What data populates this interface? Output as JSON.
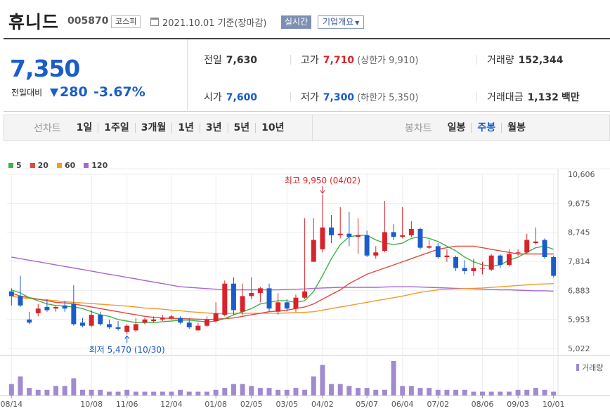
{
  "header": {
    "name": "휴니드",
    "code": "005870",
    "market": "코스피",
    "date": "2021.10.01 기준(장마감)",
    "realtime_label": "실시간",
    "company_label": "기업개요"
  },
  "quote": {
    "price": "7,350",
    "change_label": "전일대비",
    "change": "280",
    "change_pct": "-3.67%",
    "prev_close_label": "전일",
    "prev_close": "7,630",
    "high_label": "고가",
    "high": "7,710",
    "upper_limit": "(상한가 9,910)",
    "volume_label": "거래량",
    "volume": "152,344",
    "open_label": "시가",
    "open": "7,600",
    "low_label": "저가",
    "low": "7,300",
    "lower_limit": "(하한가 5,350)",
    "amount_label": "거래대금",
    "amount": "1,132",
    "amount_unit": "백만"
  },
  "tabs": {
    "line_chart_label": "선차트",
    "line_periods": [
      "1일",
      "1주일",
      "3개월",
      "1년",
      "3년",
      "5년",
      "10년"
    ],
    "candle_label": "봉차트",
    "candle_periods": [
      "일봉",
      "주봉",
      "월봉"
    ],
    "active_candle": "주봉"
  },
  "colors": {
    "up": "#d8232a",
    "down": "#1a5dc9",
    "ma5": "#3bb34a",
    "ma20": "#e8453c",
    "ma60": "#f29a2e",
    "ma120": "#a566d6",
    "volume": "#a18ad0"
  },
  "chart_data": {
    "type": "candlestick",
    "legend": [
      {
        "name": "5"
      },
      {
        "name": "20"
      },
      {
        "name": "60"
      },
      {
        "name": "120"
      }
    ],
    "ylim": [
      5022,
      10606
    ],
    "y_ticks": [
      "10,606",
      "9,675",
      "8,745",
      "7,814",
      "6,883",
      "5,953",
      "5,022"
    ],
    "x_ticks": [
      "08/14",
      "10/08",
      "11/06",
      "12/04",
      "01/08",
      "02/05",
      "03/05",
      "04/02",
      "05/07",
      "06/04",
      "07/02",
      "08/06",
      "09/03",
      "10/01"
    ],
    "x_tick_index": [
      0,
      9,
      13,
      18,
      23,
      27,
      31,
      35,
      40,
      44,
      48,
      53,
      57,
      61
    ],
    "max_annotation": "최고 9,950 (04/02)",
    "min_annotation": "최저 5,470 (10/30)",
    "volume_label": "거래량",
    "candles": [
      {
        "o": 6850,
        "c": 6700,
        "h": 6950,
        "l": 6400
      },
      {
        "o": 6700,
        "c": 6400,
        "h": 7350,
        "l": 6350
      },
      {
        "o": 5950,
        "c": 5850,
        "h": 6200,
        "l": 5800
      },
      {
        "o": 6150,
        "c": 6300,
        "h": 6450,
        "l": 6050
      },
      {
        "o": 6350,
        "c": 6250,
        "h": 6600,
        "l": 6200
      },
      {
        "o": 6300,
        "c": 6350,
        "h": 6400,
        "l": 6200
      },
      {
        "o": 6400,
        "c": 6300,
        "h": 6550,
        "l": 6200
      },
      {
        "o": 6450,
        "c": 5800,
        "h": 7050,
        "l": 5750
      },
      {
        "o": 5850,
        "c": 5750,
        "h": 6000,
        "l": 5700
      },
      {
        "o": 5750,
        "c": 6100,
        "h": 6250,
        "l": 5700
      },
      {
        "o": 6100,
        "c": 5800,
        "h": 6200,
        "l": 5750
      },
      {
        "o": 5800,
        "c": 5700,
        "h": 5950,
        "l": 5650
      },
      {
        "o": 5700,
        "c": 5650,
        "h": 5900,
        "l": 5600
      },
      {
        "o": 5550,
        "c": 5750,
        "h": 5800,
        "l": 5470
      },
      {
        "o": 5600,
        "c": 5800,
        "h": 6000,
        "l": 5550
      },
      {
        "o": 5850,
        "c": 5950,
        "h": 6000,
        "l": 5800
      },
      {
        "o": 5900,
        "c": 5950,
        "h": 6050,
        "l": 5850
      },
      {
        "o": 5950,
        "c": 6000,
        "h": 6100,
        "l": 5900
      },
      {
        "o": 6000,
        "c": 6050,
        "h": 6100,
        "l": 5950
      },
      {
        "o": 6000,
        "c": 5850,
        "h": 6050,
        "l": 5800
      },
      {
        "o": 5850,
        "c": 5700,
        "h": 6000,
        "l": 5650
      },
      {
        "o": 5600,
        "c": 5750,
        "h": 5850,
        "l": 5600
      },
      {
        "o": 5750,
        "c": 5950,
        "h": 6050,
        "l": 5700
      },
      {
        "o": 5900,
        "c": 6150,
        "h": 6500,
        "l": 5850
      },
      {
        "o": 6100,
        "c": 7100,
        "h": 7200,
        "l": 6050
      },
      {
        "o": 7100,
        "c": 6250,
        "h": 7300,
        "l": 6100
      },
      {
        "o": 6200,
        "c": 6700,
        "h": 7100,
        "l": 6100
      },
      {
        "o": 6700,
        "c": 6800,
        "h": 7300,
        "l": 6600
      },
      {
        "o": 6800,
        "c": 6950,
        "h": 7000,
        "l": 6500
      },
      {
        "o": 6950,
        "c": 6300,
        "h": 7100,
        "l": 6200
      },
      {
        "o": 6200,
        "c": 6500,
        "h": 6800,
        "l": 6100
      },
      {
        "o": 6500,
        "c": 6300,
        "h": 6600,
        "l": 6200
      },
      {
        "o": 6300,
        "c": 6650,
        "h": 6750,
        "l": 6200
      },
      {
        "o": 6650,
        "c": 6850,
        "h": 9200,
        "l": 6600
      },
      {
        "o": 7800,
        "c": 8500,
        "h": 9200,
        "l": 7800
      },
      {
        "o": 8200,
        "c": 8900,
        "h": 9950,
        "l": 8100
      },
      {
        "o": 8900,
        "c": 8650,
        "h": 9300,
        "l": 8400
      },
      {
        "o": 8650,
        "c": 8700,
        "h": 9550,
        "l": 8550
      },
      {
        "o": 8700,
        "c": 8600,
        "h": 9400,
        "l": 8300
      },
      {
        "o": 8600,
        "c": 8650,
        "h": 9200,
        "l": 8050
      },
      {
        "o": 8650,
        "c": 8000,
        "h": 8800,
        "l": 7950
      },
      {
        "o": 8000,
        "c": 8100,
        "h": 8300,
        "l": 7900
      },
      {
        "o": 8150,
        "c": 8750,
        "h": 9750,
        "l": 8100
      },
      {
        "o": 8750,
        "c": 8600,
        "h": 9000,
        "l": 8500
      },
      {
        "o": 8600,
        "c": 8650,
        "h": 9550,
        "l": 8550
      },
      {
        "o": 8650,
        "c": 8850,
        "h": 9100,
        "l": 8600
      },
      {
        "o": 8850,
        "c": 8250,
        "h": 8900,
        "l": 8200
      },
      {
        "o": 8250,
        "c": 8300,
        "h": 8500,
        "l": 8200
      },
      {
        "o": 8300,
        "c": 7950,
        "h": 8400,
        "l": 7900
      },
      {
        "o": 7950,
        "c": 8000,
        "h": 8200,
        "l": 7800
      },
      {
        "o": 7950,
        "c": 7600,
        "h": 8000,
        "l": 7500
      },
      {
        "o": 7600,
        "c": 7500,
        "h": 7850,
        "l": 7400
      },
      {
        "o": 7500,
        "c": 7600,
        "h": 7900,
        "l": 7350
      },
      {
        "o": 7600,
        "c": 7600,
        "h": 7800,
        "l": 7400
      },
      {
        "o": 7550,
        "c": 8000,
        "h": 8050,
        "l": 7500
      },
      {
        "o": 8000,
        "c": 7700,
        "h": 8050,
        "l": 7600
      },
      {
        "o": 7700,
        "c": 8050,
        "h": 8200,
        "l": 7650
      },
      {
        "o": 8100,
        "c": 8100,
        "h": 8200,
        "l": 8000
      },
      {
        "o": 8100,
        "c": 8500,
        "h": 8700,
        "l": 8050
      },
      {
        "o": 8400,
        "c": 8450,
        "h": 8900,
        "l": 8350
      },
      {
        "o": 8500,
        "c": 7950,
        "h": 8550,
        "l": 7900
      },
      {
        "o": 7950,
        "c": 7350,
        "h": 8000,
        "l": 7300
      }
    ],
    "ma5": [
      6900,
      6800,
      6650,
      6550,
      6450,
      6400,
      6380,
      6350,
      6300,
      6200,
      6100,
      6050,
      5950,
      5900,
      5850,
      5850,
      5850,
      5880,
      5900,
      5930,
      5930,
      5900,
      5870,
      5900,
      5980,
      6100,
      6200,
      6300,
      6450,
      6500,
      6550,
      6550,
      6500,
      6550,
      6850,
      7350,
      7900,
      8350,
      8600,
      8650,
      8650,
      8500,
      8400,
      8350,
      8400,
      8550,
      8600,
      8550,
      8450,
      8300,
      8150,
      7950,
      7800,
      7700,
      7650,
      7700,
      7850,
      7950,
      8100,
      8250,
      8300,
      8200
    ],
    "ma20": [
      6800,
      6700,
      6650,
      6600,
      6550,
      6500,
      6480,
      6450,
      6400,
      6350,
      6300,
      6250,
      6200,
      6150,
      6100,
      6050,
      6020,
      6000,
      5980,
      5980,
      5970,
      5960,
      5950,
      5960,
      5980,
      6000,
      6050,
      6100,
      6150,
      6200,
      6220,
      6250,
      6300,
      6350,
      6450,
      6600,
      6750,
      6900,
      7100,
      7250,
      7400,
      7500,
      7600,
      7700,
      7800,
      7900,
      8000,
      8100,
      8200,
      8250,
      8300,
      8300,
      8300,
      8250,
      8200,
      8150,
      8100,
      8050,
      8050,
      8050,
      8050,
      8050
    ],
    "ma60": [
      6700,
      6650,
      6620,
      6600,
      6580,
      6550,
      6520,
      6500,
      6480,
      6460,
      6440,
      6420,
      6400,
      6380,
      6350,
      6320,
      6300,
      6280,
      6250,
      6230,
      6200,
      6180,
      6160,
      6140,
      6140,
      6150,
      6150,
      6150,
      6150,
      6150,
      6150,
      6160,
      6170,
      6180,
      6200,
      6250,
      6300,
      6350,
      6400,
      6450,
      6500,
      6550,
      6600,
      6650,
      6700,
      6760,
      6820,
      6860,
      6900,
      6920,
      6930,
      6940,
      6950,
      6960,
      6980,
      7000,
      7020,
      7040,
      7060,
      7080,
      7090,
      7100
    ],
    "ma120": [
      7950,
      7900,
      7850,
      7800,
      7750,
      7700,
      7650,
      7600,
      7550,
      7500,
      7450,
      7400,
      7350,
      7300,
      7250,
      7200,
      7150,
      7100,
      7050,
      7000,
      6980,
      6960,
      6940,
      6920,
      6900,
      6900,
      6900,
      6900,
      6900,
      6900,
      6900,
      6910,
      6920,
      6930,
      6950,
      6960,
      6970,
      6980,
      6980,
      6980,
      6980,
      6980,
      6990,
      7000,
      7000,
      7000,
      6990,
      6980,
      6970,
      6960,
      6950,
      6940,
      6930,
      6920,
      6910,
      6900,
      6900,
      6890,
      6880,
      6870,
      6870,
      6860
    ],
    "volume": [
      6,
      10,
      4,
      3,
      3,
      5,
      5,
      9,
      3,
      3,
      3,
      2,
      2,
      3,
      2,
      2,
      2,
      2,
      2,
      3,
      2,
      2,
      2,
      3,
      4,
      6,
      6,
      5,
      4,
      4,
      3,
      3,
      4,
      3,
      10,
      16,
      6,
      6,
      5,
      4,
      4,
      3,
      3,
      18,
      5,
      5,
      4,
      4,
      3,
      3,
      3,
      3,
      2,
      2,
      2,
      2,
      2,
      3,
      3,
      4,
      3,
      2
    ]
  }
}
